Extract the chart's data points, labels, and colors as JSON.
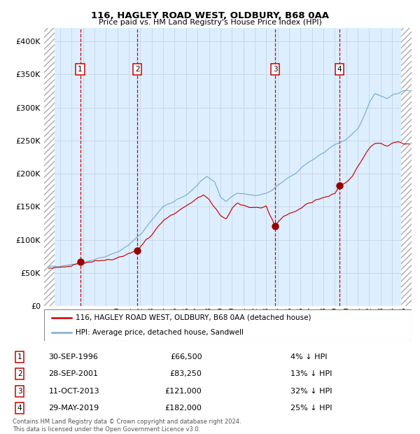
{
  "title1": "116, HAGLEY ROAD WEST, OLDBURY, B68 0AA",
  "title2": "Price paid vs. HM Land Registry's House Price Index (HPI)",
  "ylim": [
    0,
    420000
  ],
  "xlim_start": 1993.6,
  "xlim_end": 2025.7,
  "yticks": [
    0,
    50000,
    100000,
    150000,
    200000,
    250000,
    300000,
    350000,
    400000
  ],
  "ytick_labels": [
    "£0",
    "£50K",
    "£100K",
    "£150K",
    "£200K",
    "£250K",
    "£300K",
    "£350K",
    "£400K"
  ],
  "sale_dates": [
    1996.75,
    2001.74,
    2013.78,
    2019.41
  ],
  "sale_prices": [
    66500,
    83250,
    121000,
    182000
  ],
  "sale_labels": [
    "1",
    "2",
    "3",
    "4"
  ],
  "hatch_left_end": 1994.5,
  "hatch_right_start": 2024.8,
  "sale_info": [
    {
      "num": "1",
      "date": "30-SEP-1996",
      "price": "£66,500",
      "pct": "4% ↓ HPI"
    },
    {
      "num": "2",
      "date": "28-SEP-2001",
      "price": "£83,250",
      "pct": "13% ↓ HPI"
    },
    {
      "num": "3",
      "date": "11-OCT-2013",
      "price": "£121,000",
      "pct": "32% ↓ HPI"
    },
    {
      "num": "4",
      "date": "29-MAY-2019",
      "price": "£182,000",
      "pct": "25% ↓ HPI"
    }
  ],
  "red_line_color": "#cc0000",
  "blue_line_color": "#7aadd4",
  "shading_color": "#ddeeff",
  "grid_color": "#c8d8e8",
  "sale_dot_color": "#990000",
  "vline_color_sale": "#cc0000",
  "label_box_edge": "#cc0000",
  "legend_line1": "116, HAGLEY ROAD WEST, OLDBURY, B68 0AA (detached house)",
  "legend_line2": "HPI: Average price, detached house, Sandwell",
  "footer": "Contains HM Land Registry data © Crown copyright and database right 2024.\nThis data is licensed under the Open Government Licence v3.0."
}
